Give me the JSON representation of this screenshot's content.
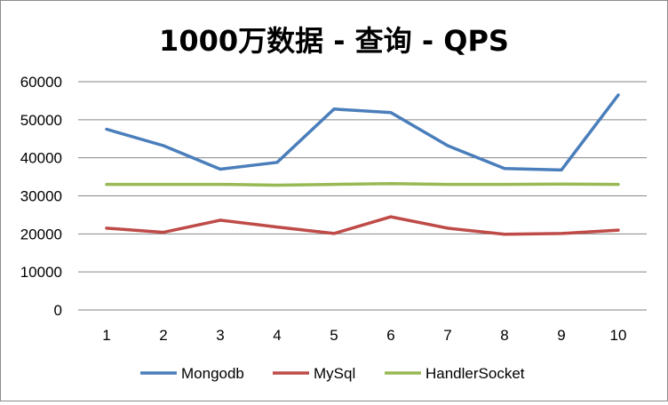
{
  "chart_data": {
    "type": "line",
    "title": "1000万数据 - 查询 - QPS",
    "xlabel": "",
    "ylabel": "",
    "categories": [
      "1",
      "2",
      "3",
      "4",
      "5",
      "6",
      "7",
      "8",
      "9",
      "10"
    ],
    "ylim": [
      0,
      60000
    ],
    "yticks": [
      "0",
      "10000",
      "20000",
      "30000",
      "40000",
      "50000",
      "60000"
    ],
    "grid": true,
    "legend_position": "bottom",
    "series": [
      {
        "name": "Mongodb",
        "color": "#4a7ebb",
        "values": [
          47500,
          43200,
          37000,
          38800,
          52800,
          51900,
          43200,
          37200,
          36800,
          56500
        ]
      },
      {
        "name": "MySql",
        "color": "#be4b48",
        "values": [
          21500,
          20400,
          23600,
          21800,
          20100,
          24500,
          21500,
          19900,
          20100,
          21000
        ]
      },
      {
        "name": "HandlerSocket",
        "color": "#98b954",
        "values": [
          33000,
          33000,
          33000,
          32800,
          33000,
          33200,
          33000,
          33000,
          33100,
          33000
        ]
      }
    ]
  }
}
